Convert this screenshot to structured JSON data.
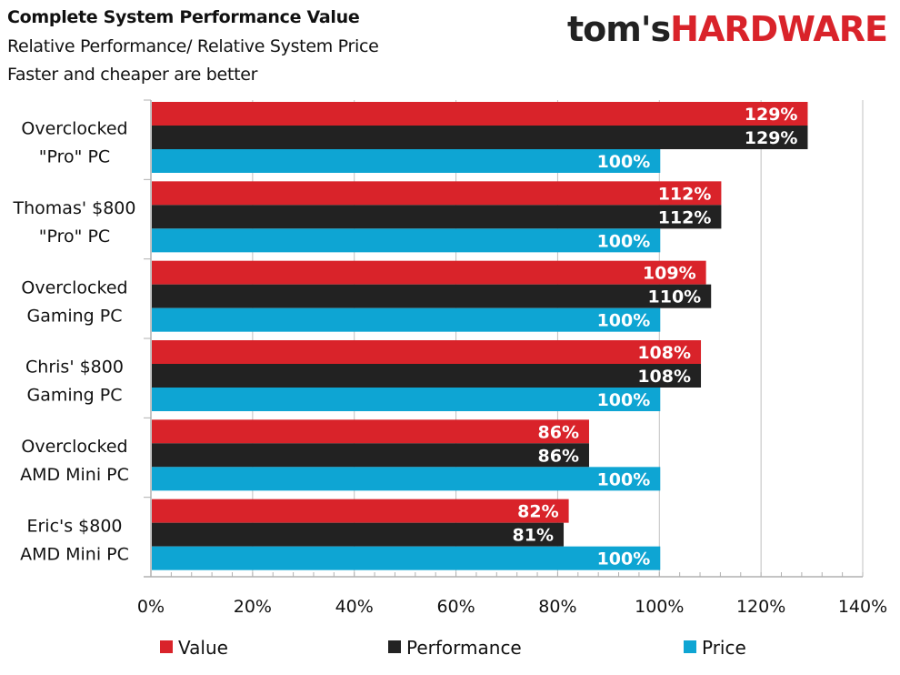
{
  "header": {
    "title": "Complete System Performance Value",
    "subtitle1": "Relative Performance/ Relative System Price",
    "subtitle2": "Faster and cheaper are better",
    "logo_part1": "tom's",
    "logo_part2": "HARDWARE"
  },
  "chart_data": {
    "type": "bar",
    "orientation": "horizontal",
    "title": "Complete System Performance Value",
    "subtitle": "Relative Performance/ Relative System Price — Faster and cheaper are better",
    "categories": [
      [
        "Overclocked",
        "\"Pro\" PC"
      ],
      [
        "Thomas' $800",
        "\"Pro\" PC"
      ],
      [
        "Overclocked",
        "Gaming PC"
      ],
      [
        "Chris' $800",
        "Gaming PC"
      ],
      [
        "Overclocked",
        "AMD Mini PC"
      ],
      [
        "Eric's $800",
        "AMD Mini PC"
      ]
    ],
    "series": [
      {
        "name": "Value",
        "color": "#d9232a",
        "values": [
          129,
          112,
          109,
          108,
          86,
          82
        ],
        "labels": [
          "129%",
          "112%",
          "109%",
          "108%",
          "86%",
          "82%"
        ]
      },
      {
        "name": "Performance",
        "color": "#222222",
        "values": [
          129,
          112,
          110,
          108,
          86,
          81
        ],
        "labels": [
          "129%",
          "112%",
          "110%",
          "108%",
          "86%",
          "81%"
        ]
      },
      {
        "name": "Price",
        "color": "#0ea5d3",
        "values": [
          100,
          100,
          100,
          100,
          100,
          100
        ],
        "labels": [
          "100%",
          "100%",
          "100%",
          "100%",
          "100%",
          "100%"
        ]
      }
    ],
    "xlim": [
      0,
      140
    ],
    "xticks": [
      0,
      20,
      40,
      60,
      80,
      100,
      120,
      140
    ],
    "xtick_labels": [
      "0%",
      "20%",
      "40%",
      "60%",
      "80%",
      "100%",
      "120%",
      "140%"
    ],
    "xlabel": "",
    "ylabel": "",
    "grid": "vertical",
    "legend_position": "bottom"
  }
}
